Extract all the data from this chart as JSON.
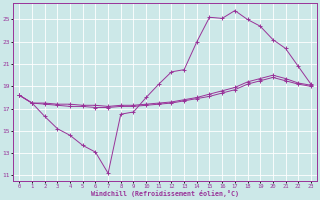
{
  "xlabel": "Windchill (Refroidissement éolien,°C)",
  "bg_color": "#cce8e8",
  "grid_color": "#ffffff",
  "line_color": "#993399",
  "xlim": [
    -0.5,
    23.5
  ],
  "ylim": [
    10.5,
    26.5
  ],
  "xticks": [
    0,
    1,
    2,
    3,
    4,
    5,
    6,
    7,
    8,
    9,
    10,
    11,
    12,
    13,
    14,
    15,
    16,
    17,
    18,
    19,
    20,
    21,
    22,
    23
  ],
  "yticks": [
    11,
    13,
    15,
    17,
    19,
    21,
    23,
    25
  ],
  "line1_x": [
    0,
    1,
    2,
    3,
    4,
    5,
    6,
    7,
    8,
    9,
    10,
    11,
    12,
    13,
    14,
    15,
    16,
    17,
    18,
    19,
    20,
    21,
    22,
    23
  ],
  "line1_y": [
    18.2,
    17.5,
    16.3,
    15.2,
    14.6,
    13.7,
    13.1,
    11.2,
    16.5,
    16.7,
    18.0,
    19.2,
    20.3,
    20.5,
    23.0,
    25.2,
    25.1,
    25.8,
    25.0,
    24.4,
    23.2,
    22.4,
    20.8,
    19.2
  ],
  "line2_x": [
    0,
    1,
    2,
    3,
    4,
    5,
    6,
    7,
    8,
    9,
    10,
    11,
    12,
    13,
    14,
    15,
    16,
    17,
    18,
    19,
    20,
    21,
    22,
    23
  ],
  "line2_y": [
    18.2,
    17.5,
    17.4,
    17.3,
    17.2,
    17.2,
    17.1,
    17.1,
    17.2,
    17.2,
    17.3,
    17.4,
    17.5,
    17.7,
    17.9,
    18.1,
    18.4,
    18.7,
    19.2,
    19.5,
    19.8,
    19.5,
    19.2,
    19.0
  ],
  "line3_x": [
    0,
    1,
    2,
    3,
    4,
    5,
    6,
    7,
    8,
    9,
    10,
    11,
    12,
    13,
    14,
    15,
    16,
    17,
    18,
    19,
    20,
    21,
    22,
    23
  ],
  "line3_y": [
    18.2,
    17.5,
    17.5,
    17.4,
    17.4,
    17.3,
    17.3,
    17.2,
    17.3,
    17.3,
    17.4,
    17.5,
    17.6,
    17.8,
    18.0,
    18.3,
    18.6,
    18.9,
    19.4,
    19.7,
    20.0,
    19.7,
    19.3,
    19.1
  ]
}
